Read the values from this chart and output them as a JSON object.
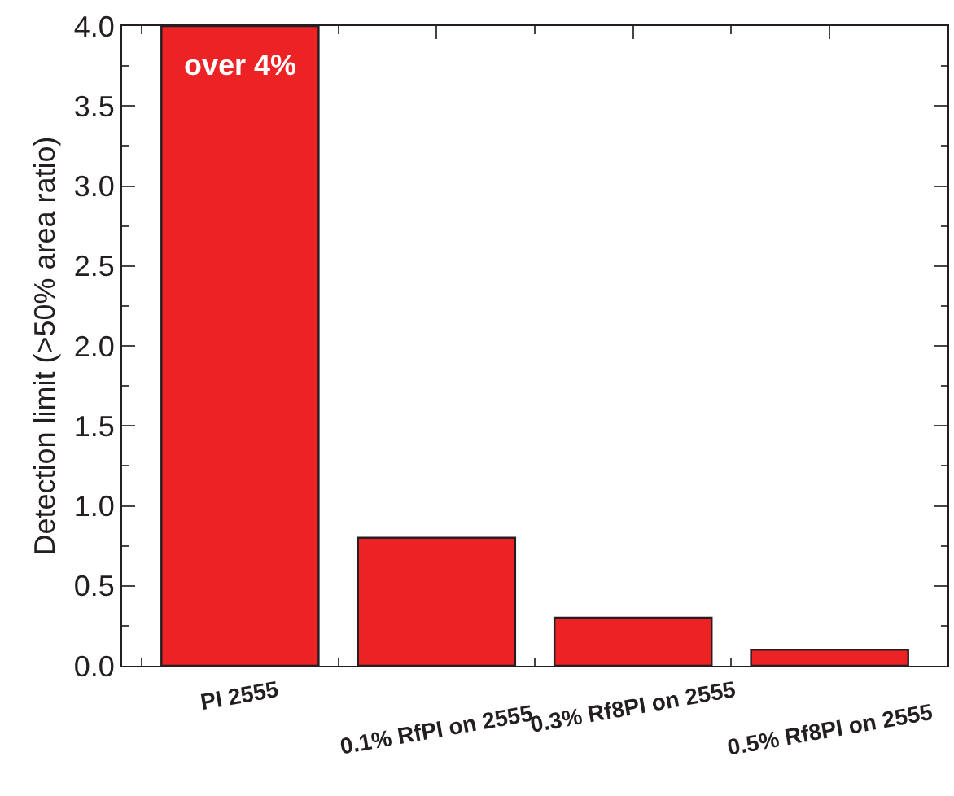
{
  "chart_data": {
    "type": "bar",
    "ylabel": "Detection limit (>50% area ratio)",
    "categories": [
      "PI 2555",
      "0.1% RfPI on 2555",
      "0.3% Rf8PI on 2555",
      "0.5% Rf8PI on 2555"
    ],
    "values": [
      4.0,
      0.8,
      0.3,
      0.1
    ],
    "color": "#ed2224",
    "ylim": [
      0,
      4
    ],
    "yticks": [
      {
        "value": 0,
        "label": "0.0"
      },
      {
        "value": 0.5,
        "label": "0.5"
      },
      {
        "value": 1,
        "label": "1.0"
      },
      {
        "value": 1.5,
        "label": "1.5"
      },
      {
        "value": 2,
        "label": "2.0"
      },
      {
        "value": 2.5,
        "label": "2.5"
      },
      {
        "value": 3,
        "label": "3.0"
      },
      {
        "value": 3.5,
        "label": "3.5"
      },
      {
        "value": 4,
        "label": "4.0"
      }
    ],
    "annotations": [
      "over 4%"
    ]
  }
}
